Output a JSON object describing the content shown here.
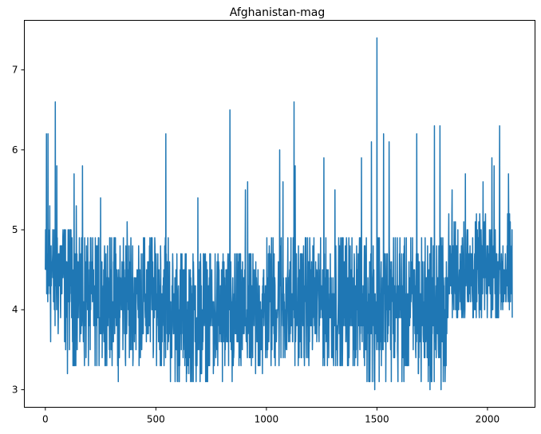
{
  "chart_data": {
    "type": "line",
    "title": "Afghanistan-mag",
    "xlabel": "",
    "ylabel": "",
    "xlim": [
      -95,
      2215
    ],
    "ylim": [
      2.78,
      7.62
    ],
    "grid": false,
    "legend": "none",
    "xticks": [
      0,
      500,
      1000,
      1500,
      2000
    ],
    "xtick_labels": [
      "0",
      "500",
      "1000",
      "1500",
      "2000"
    ],
    "yticks": [
      3,
      4,
      5,
      6,
      7
    ],
    "ytick_labels": [
      "3",
      "4",
      "5",
      "6",
      "7"
    ],
    "series": [
      {
        "color": "#1f77b4",
        "n_points": 2113,
        "baseline_segments": [
          {
            "x0": 0,
            "x1": 120,
            "low": 3.4,
            "high": 5.0,
            "mean": 4.45
          },
          {
            "x0": 120,
            "x1": 560,
            "low": 3.3,
            "high": 4.9,
            "mean": 4.15
          },
          {
            "x0": 560,
            "x1": 1000,
            "low": 3.1,
            "high": 4.7,
            "mean": 3.95
          },
          {
            "x0": 1000,
            "x1": 1450,
            "low": 3.3,
            "high": 4.9,
            "mean": 4.1
          },
          {
            "x0": 1450,
            "x1": 1820,
            "low": 3.1,
            "high": 4.9,
            "mean": 4.05
          },
          {
            "x0": 1820,
            "x1": 2113,
            "low": 3.9,
            "high": 5.2,
            "mean": 4.45
          }
        ],
        "peaks": [
          {
            "x": 5,
            "y": 6.2
          },
          {
            "x": 12,
            "y": 6.2
          },
          {
            "x": 20,
            "y": 5.3
          },
          {
            "x": 45,
            "y": 6.6
          },
          {
            "x": 52,
            "y": 5.8
          },
          {
            "x": 130,
            "y": 5.7
          },
          {
            "x": 140,
            "y": 5.3
          },
          {
            "x": 168,
            "y": 5.8
          },
          {
            "x": 250,
            "y": 5.4
          },
          {
            "x": 330,
            "y": 5.2
          },
          {
            "x": 370,
            "y": 5.1
          },
          {
            "x": 545,
            "y": 6.2
          },
          {
            "x": 690,
            "y": 5.4
          },
          {
            "x": 835,
            "y": 6.5
          },
          {
            "x": 905,
            "y": 5.5
          },
          {
            "x": 915,
            "y": 5.6
          },
          {
            "x": 1060,
            "y": 6.0
          },
          {
            "x": 1075,
            "y": 5.6
          },
          {
            "x": 1125,
            "y": 6.6
          },
          {
            "x": 1130,
            "y": 5.8
          },
          {
            "x": 1260,
            "y": 5.9
          },
          {
            "x": 1310,
            "y": 5.5
          },
          {
            "x": 1430,
            "y": 5.9
          },
          {
            "x": 1475,
            "y": 6.1
          },
          {
            "x": 1500,
            "y": 7.4
          },
          {
            "x": 1530,
            "y": 6.2
          },
          {
            "x": 1555,
            "y": 6.1
          },
          {
            "x": 1680,
            "y": 6.2
          },
          {
            "x": 1760,
            "y": 6.3
          },
          {
            "x": 1785,
            "y": 6.3
          },
          {
            "x": 1840,
            "y": 5.5
          },
          {
            "x": 1900,
            "y": 5.7
          },
          {
            "x": 1980,
            "y": 5.6
          },
          {
            "x": 2020,
            "y": 5.9
          },
          {
            "x": 2030,
            "y": 5.8
          },
          {
            "x": 2055,
            "y": 6.3
          },
          {
            "x": 2095,
            "y": 5.7
          }
        ],
        "troughs": [
          {
            "x": 100,
            "y": 3.2
          },
          {
            "x": 225,
            "y": 3.3
          },
          {
            "x": 330,
            "y": 3.1
          },
          {
            "x": 640,
            "y": 3.2
          },
          {
            "x": 700,
            "y": 3.1
          },
          {
            "x": 760,
            "y": 3.2
          },
          {
            "x": 845,
            "y": 3.1
          },
          {
            "x": 1300,
            "y": 3.4
          },
          {
            "x": 1490,
            "y": 3.0
          },
          {
            "x": 1700,
            "y": 3.1
          },
          {
            "x": 1740,
            "y": 3.0
          },
          {
            "x": 1790,
            "y": 3.0
          },
          {
            "x": 1800,
            "y": 3.1
          }
        ]
      }
    ]
  }
}
